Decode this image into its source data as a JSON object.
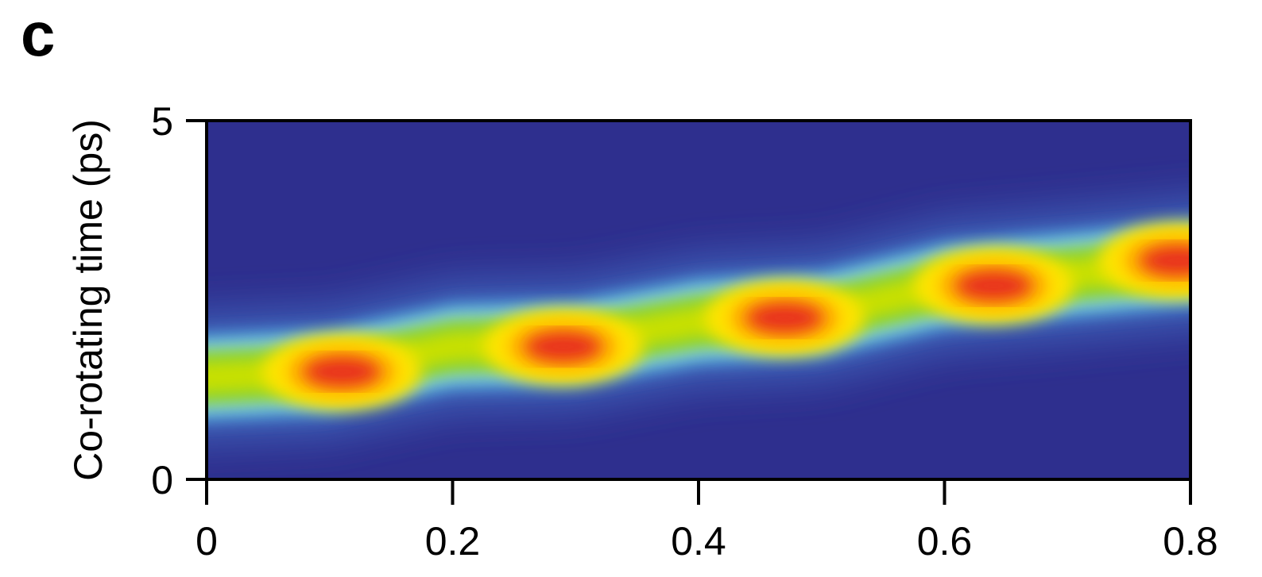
{
  "panel_label": "c",
  "chart_data": {
    "type": "heatmap",
    "title": "",
    "xlabel": "",
    "ylabel": "Co-rotating time (ps)",
    "xlim": [
      0,
      0.8
    ],
    "ylim": [
      0,
      5
    ],
    "x_ticks": [
      {
        "value": 0,
        "label": "0"
      },
      {
        "value": 0.2,
        "label": "0.2"
      },
      {
        "value": 0.4,
        "label": "0.4"
      },
      {
        "value": 0.6,
        "label": "0.6"
      },
      {
        "value": 0.8,
        "label": "0.8"
      }
    ],
    "y_ticks": [
      {
        "value": 0,
        "label": "0"
      },
      {
        "value": 5,
        "label": "5"
      }
    ],
    "colormap": [
      "#2e2f8e",
      "#3a56b0",
      "#4f9bd6",
      "#8fd8f0",
      "#7fcf3a",
      "#c8e000",
      "#ffe400",
      "#ffb000",
      "#e8321e"
    ],
    "band_ridge": [
      {
        "x": 0.0,
        "y": 1.4
      },
      {
        "x": 0.1,
        "y": 1.5
      },
      {
        "x": 0.2,
        "y": 1.85
      },
      {
        "x": 0.3,
        "y": 1.9
      },
      {
        "x": 0.4,
        "y": 2.2
      },
      {
        "x": 0.5,
        "y": 2.3
      },
      {
        "x": 0.6,
        "y": 2.7
      },
      {
        "x": 0.7,
        "y": 2.85
      },
      {
        "x": 0.8,
        "y": 3.05
      }
    ],
    "peaks": [
      {
        "x": 0.11,
        "y": 1.5
      },
      {
        "x": 0.29,
        "y": 1.85
      },
      {
        "x": 0.47,
        "y": 2.25
      },
      {
        "x": 0.64,
        "y": 2.7
      },
      {
        "x": 0.79,
        "y": 3.05
      }
    ]
  }
}
